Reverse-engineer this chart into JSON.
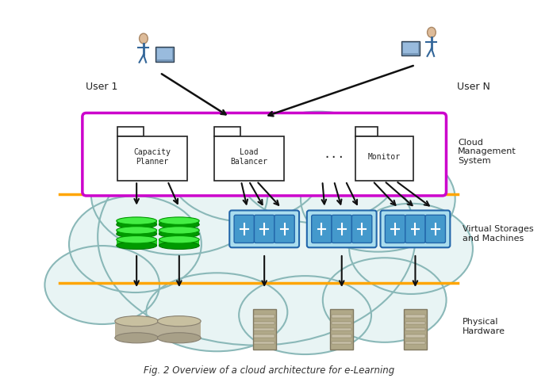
{
  "bg_color": "#ffffff",
  "cloud_fill": "#e8f4f4",
  "cloud_edge": "#8ab8b8",
  "orange_color": "#FFA500",
  "purple_color": "#CC00CC",
  "white": "#ffffff",
  "dark": "#222222",
  "arrow_color": "#111111",
  "text_color": "#222222",
  "green1": "#00DD00",
  "green2": "#22EE22",
  "green3": "#00BB00",
  "blue_srv": "#4499CC",
  "blue_srv_dark": "#2266AA",
  "blue_srv_bg": "#AADDEE",
  "grey_cyl_top": "#C8C0A0",
  "grey_cyl_mid": "#B8B098",
  "grey_cyl_bot": "#A8A088",
  "grey_cyl_edge": "#888070",
  "tower_fill": "#B0A888",
  "tower_edge": "#807860",
  "tower_stripe": "#C8C0A8",
  "title": "Fig. 2 Overview of a cloud architecture for e-Learning",
  "user1_label": "User 1",
  "userN_label": "User N",
  "cms_label": "Cloud\nManagement\nSystem",
  "vs_label": "Virtual Storages\nand Machines",
  "ph_label": "Physical\nHardware",
  "figsize": [
    6.92,
    4.87
  ],
  "dpi": 100
}
